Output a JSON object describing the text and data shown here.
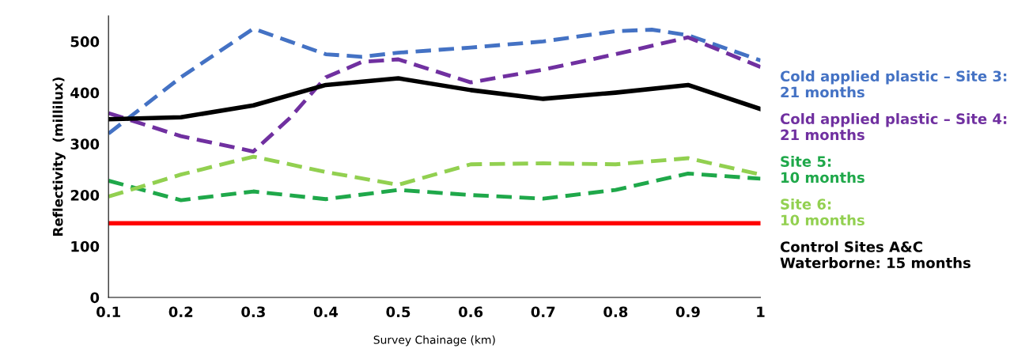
{
  "chart_data": {
    "type": "line",
    "xlabel": "Survey Chainage (km)",
    "ylabel": "Reflectivity  (millilux)",
    "x": [
      0.1,
      0.2,
      0.3,
      0.4,
      0.5,
      0.6,
      0.7,
      0.8,
      0.9,
      1
    ],
    "xlim": [
      0.1,
      1
    ],
    "xticks": [
      0.1,
      0.2,
      0.3,
      0.4,
      0.5,
      0.6,
      0.7,
      0.8,
      0.9,
      1
    ],
    "ylim": [
      0,
      550
    ],
    "yticks": [
      0,
      100,
      200,
      300,
      400,
      500
    ],
    "grid": false,
    "legend": "right",
    "marker": "none",
    "series": [
      {
        "name": "Cold applied plastic – Site 3:\n21 months",
        "color": "#4472c4",
        "line_style": "dashed",
        "x": [
          0.1,
          0.2,
          0.3,
          0.35,
          0.4,
          0.45,
          0.5,
          0.6,
          0.7,
          0.8,
          0.85,
          0.9,
          1
        ],
        "values": [
          320,
          430,
          525,
          500,
          475,
          470,
          478,
          488,
          500,
          520,
          523,
          512,
          463
        ]
      },
      {
        "name": "Cold applied plastic – Site 4:\n21 months",
        "color": "#7030a0",
        "line_style": "dashed",
        "x": [
          0.1,
          0.2,
          0.3,
          0.35,
          0.4,
          0.45,
          0.5,
          0.6,
          0.7,
          0.8,
          0.9,
          1
        ],
        "values": [
          360,
          315,
          285,
          350,
          430,
          460,
          465,
          420,
          445,
          475,
          508,
          450
        ]
      },
      {
        "name": "Site 5:\n10 months",
        "color": "#1fa84a",
        "line_style": "dashed",
        "values": [
          228,
          190,
          207,
          192,
          210,
          200,
          193,
          210,
          242,
          232
        ]
      },
      {
        "name": "Site 6:\n10 months",
        "color": "#92d050",
        "line_style": "dashed",
        "values": [
          197,
          240,
          275,
          245,
          220,
          260,
          262,
          260,
          272,
          240
        ]
      },
      {
        "name": "Control Sites A&C\nWaterborne: 15 months",
        "color": "#000000",
        "line_style": "solid",
        "values": [
          348,
          352,
          375,
          415,
          428,
          405,
          388,
          400,
          415,
          368
        ]
      }
    ],
    "ref_lines": [
      {
        "axis": "y",
        "value": 145,
        "color": "#ff0000",
        "line_style": "solid"
      }
    ]
  }
}
